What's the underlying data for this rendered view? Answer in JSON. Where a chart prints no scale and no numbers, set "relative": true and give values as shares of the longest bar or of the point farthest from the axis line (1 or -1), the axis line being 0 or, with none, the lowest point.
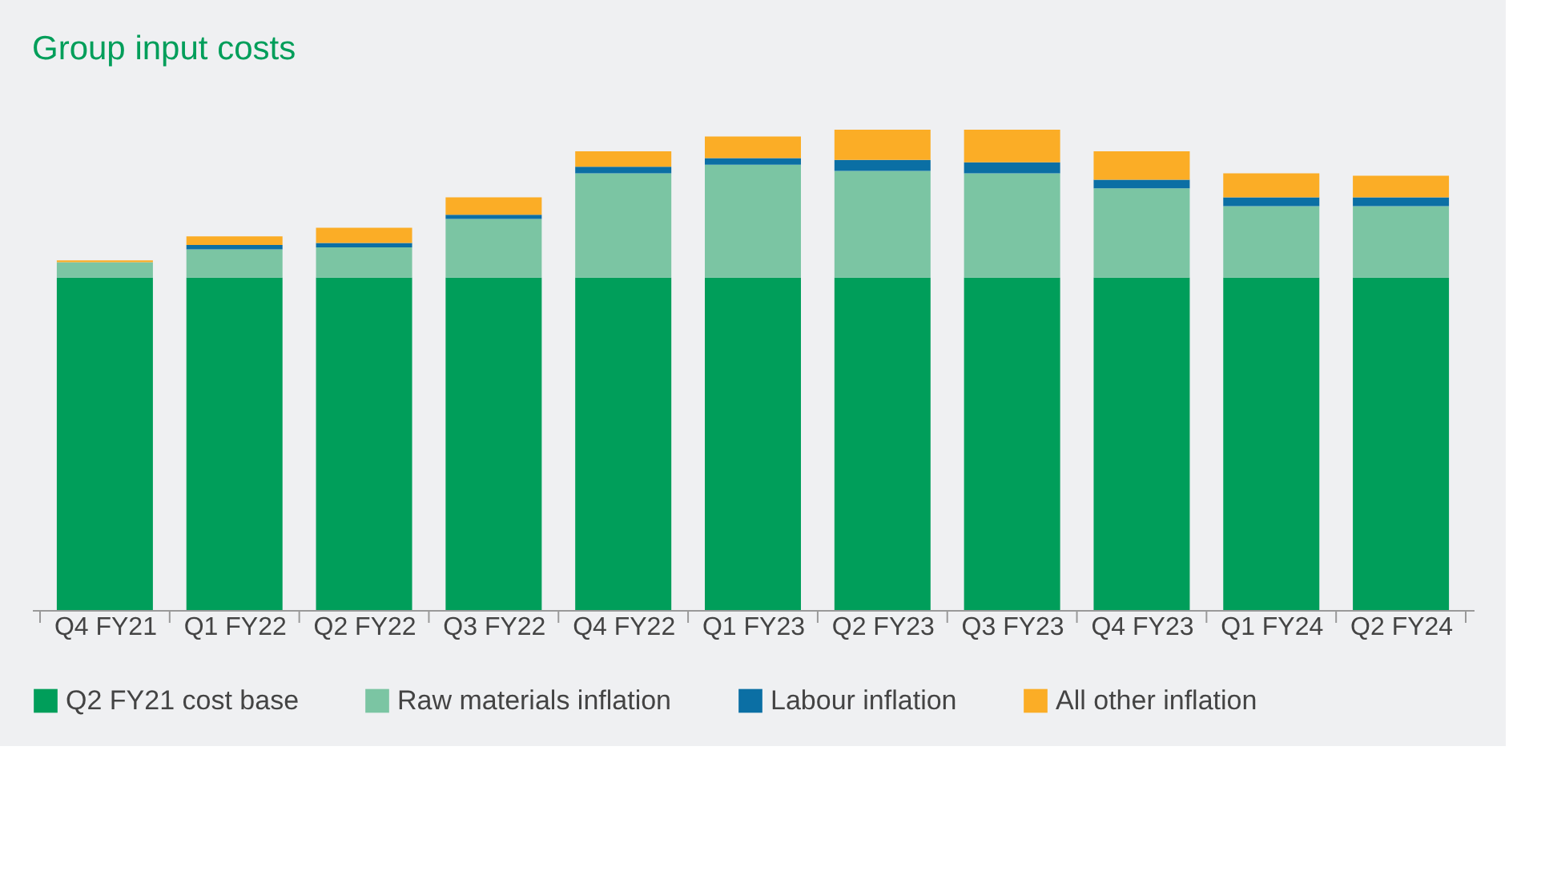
{
  "chart_data": {
    "type": "bar",
    "title": "Group input costs",
    "stacked": true,
    "relative": true,
    "grid": false,
    "legend": "bottom",
    "categories": [
      "Q4 FY21",
      "Q1 FY22",
      "Q2 FY22",
      "Q3 FY22",
      "Q4 FY22",
      "Q1 FY23",
      "Q2 FY23",
      "Q3 FY23",
      "Q4 FY23",
      "Q1 FY24",
      "Q2 FY24"
    ],
    "series": [
      {
        "name": "Q2 FY21 cost base",
        "color": "#009e5a",
        "values": [
          0.692,
          0.692,
          0.692,
          0.692,
          0.692,
          0.692,
          0.692,
          0.692,
          0.692,
          0.692,
          0.692
        ]
      },
      {
        "name": "Raw materials inflation",
        "color": "#7bc5a3",
        "values": [
          0.032,
          0.059,
          0.063,
          0.122,
          0.217,
          0.235,
          0.222,
          0.217,
          0.186,
          0.149,
          0.149
        ]
      },
      {
        "name": "Labour inflation",
        "color": "#0b6fa4",
        "values": [
          0,
          0.009,
          0.009,
          0.009,
          0.014,
          0.014,
          0.023,
          0.023,
          0.018,
          0.018,
          0.018
        ]
      },
      {
        "name": "All other inflation",
        "color": "#fbad26",
        "values": [
          0.004,
          0.018,
          0.032,
          0.036,
          0.032,
          0.045,
          0.063,
          0.068,
          0.059,
          0.05,
          0.045
        ]
      }
    ]
  }
}
